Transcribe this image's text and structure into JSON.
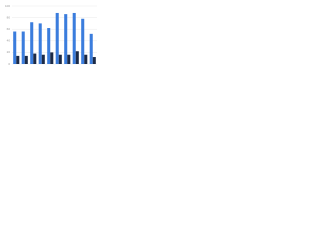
{
  "chart_data": {
    "type": "bar",
    "categories": [
      null,
      null,
      null,
      null,
      null,
      null,
      null,
      null,
      null,
      null
    ],
    "series": [
      {
        "color": "#3b7ddd",
        "values": [
          56,
          56,
          72,
          70,
          62,
          88,
          86,
          88,
          78,
          52
        ]
      },
      {
        "color": "#1b2a47",
        "values": [
          14,
          14,
          18,
          16,
          20,
          16,
          16,
          22,
          16,
          12
        ]
      }
    ],
    "ylim": [
      0,
      100
    ],
    "yticks": [
      0,
      20,
      40,
      60,
      80,
      100
    ],
    "grid": true
  }
}
